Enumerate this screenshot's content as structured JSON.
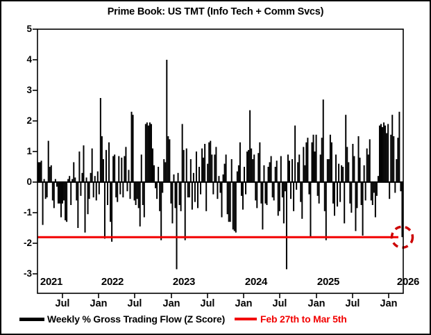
{
  "chart": {
    "title": "Prime Book: US TMT (Info Tech + Comm Svcs)",
    "y_ticks": [
      "5",
      "4",
      "3",
      "2",
      "1",
      "0",
      "-1",
      "-2",
      "-3"
    ],
    "month_ticks": [
      "Jul",
      "Jan",
      "Jul",
      "Jan",
      "Jul",
      "Jan",
      "Jul",
      "Jan",
      "Jul",
      "Jan"
    ],
    "year_labels": [
      "2021",
      "2022",
      "2023",
      "2024",
      "2025",
      "2026"
    ],
    "legend": {
      "series_label": "Weekly % Gross Trading Flow (Z Score)",
      "series_color": "#000000",
      "reference_label": "Feb 27th to Mar 5th",
      "reference_color": "#F20000"
    }
  },
  "chart_data": {
    "type": "bar",
    "title": "Prime Book: US TMT (Info Tech + Comm Svcs)",
    "series_name": "Weekly % Gross Trading Flow (Z Score)",
    "frequency": "weekly",
    "x_start": "2021-02",
    "x_end": "2026-03",
    "x_tick_years": [
      2021,
      2022,
      2023,
      2024,
      2025,
      2026
    ],
    "x_minor_ticks": [
      "Jul 2021",
      "Jan 2022",
      "Jul 2022",
      "Jan 2023",
      "Jul 2023",
      "Jan 2024",
      "Jul 2024",
      "Jan 2025",
      "Jul 2025",
      "Jan 2026"
    ],
    "ylim": [
      -3.6,
      5
    ],
    "y_axis_ticks": [
      5,
      4,
      3,
      2,
      1,
      0,
      -1,
      -2,
      -3
    ],
    "grid": false,
    "bar_color": "#000000",
    "legend_position": "bottom",
    "reference_line": {
      "label": "Feb 27th to Mar 5th",
      "value": -1.8,
      "color": "#F20000"
    },
    "highlight": {
      "type": "dashed-circle",
      "at": "last-point",
      "value": -1.8,
      "color": "#CC0000"
    },
    "values": [
      0.65,
      0.65,
      0.7,
      -1.4,
      0.1,
      -0.55,
      -0.5,
      1.35,
      0.5,
      0.55,
      -0.6,
      -0.85,
      0.1,
      -0.15,
      -0.7,
      -0.7,
      -1.15,
      -0.7,
      -0.6,
      -1.25,
      -1.3,
      0.1,
      0.2,
      -0.75,
      0.1,
      0.65,
      0.15,
      -0.6,
      -1.5,
      1.0,
      -0.45,
      0.3,
      1.2,
      -1.65,
      0.15,
      -1.05,
      -0.55,
      0.3,
      1.1,
      -0.5,
      0.2,
      -0.6,
      0.35,
      -0.4,
      2.75,
      1.5,
      0.75,
      -1.85,
      1.05,
      -0.75,
      1.3,
      -1.3,
      -1.95,
      0.85,
      0.9,
      -0.5,
      -0.65,
      0.85,
      -0.4,
      0.8,
      -0.5,
      0.85,
      1.15,
      -0.3,
      0.4,
      -0.55,
      2.3,
      2.2,
      -0.6,
      -0.75,
      -0.55,
      -0.85,
      -1.45,
      0.9,
      -0.75,
      -1.15,
      1.9,
      1.95,
      1.85,
      1.95,
      1.9,
      1.1,
      0.55,
      -0.2,
      -0.55,
      0.5,
      -0.95,
      -1.9,
      -0.35,
      0.75,
      0.65,
      4.0,
      1.5,
      1.4,
      -0.7,
      -1.35,
      0.25,
      -0.85,
      -2.85,
      0.3,
      -0.75,
      -0.95,
      1.9,
      1.05,
      -1.9,
      1.1,
      -0.5,
      -0.5,
      0.75,
      -0.9,
      0.3,
      -0.65,
      1.0,
      -0.85,
      0.5,
      -0.4,
      1.1,
      0.8,
      1.25,
      -0.95,
      0.6,
      1.3,
      1.35,
      0.9,
      -0.4,
      0.9,
      1.15,
      -0.55,
      0.2,
      -0.35,
      -1.15,
      0.25,
      0.6,
      0.9,
      -1.05,
      -1.3,
      -1.3,
      0.75,
      -1.55,
      -1.6,
      -1.65,
      0.35,
      0.55,
      1.3,
      -0.45,
      -0.9,
      0.5,
      -0.4,
      1.0,
      1.05,
      2.35,
      1.1,
      0.75,
      0.9,
      -0.6,
      -0.85,
      0.95,
      1.3,
      -0.7,
      -1.55,
      0.55,
      -0.7,
      -0.75,
      0.5,
      0.65,
      0.85,
      -0.5,
      -0.6,
      0.5,
      0.7,
      -1.1,
      -0.95,
      0.85,
      -0.5,
      -1.35,
      -0.3,
      -2.85,
      0.9,
      0.7,
      -0.55,
      0.75,
      -0.95,
      1.85,
      -0.25,
      0.65,
      0.9,
      -0.65,
      -1.2,
      1.15,
      0.55,
      1.3,
      1.45,
      -0.4,
      -1.8,
      1.3,
      1.55,
      1.0,
      1.55,
      -0.45,
      -0.7,
      0.9,
      1.45,
      2.7,
      -0.95,
      -1.9,
      0.75,
      0.75,
      1.55,
      1.3,
      -0.7,
      -1.1,
      0.9,
      -0.8,
      0.6,
      -0.65,
      0.55,
      0.5,
      -1.35,
      2.2,
      1.15,
      0.65,
      -0.7,
      -1.0,
      1.25,
      0.85,
      -1.6,
      -0.85,
      1.5,
      0.8,
      -0.75,
      -1.75,
      0.55,
      -0.6,
      1.1,
      0.9,
      1.4,
      -0.6,
      -0.75,
      -0.35,
      -1.15,
      -0.45,
      0.2,
      1.85,
      1.9,
      1.8,
      1.95,
      1.85,
      1.6,
      1.9,
      -0.55,
      1.55,
      2.2,
      1.5,
      -0.35,
      0.75,
      1.45,
      2.3,
      -0.3,
      -1.8
    ]
  }
}
